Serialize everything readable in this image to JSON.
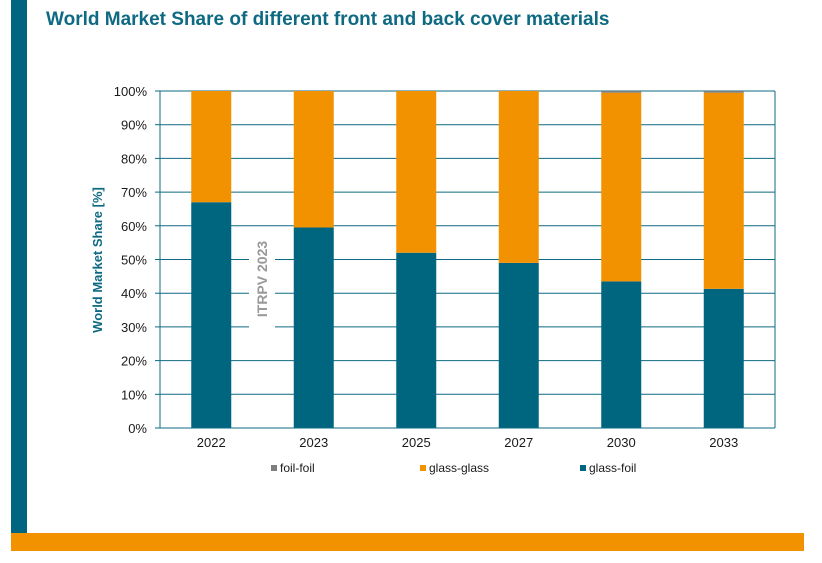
{
  "title": "World Market Share of different front and back cover materials",
  "colors": {
    "teal": "#006680",
    "orange": "#F39200",
    "grey": "#7F7F7F",
    "title": "#0E6A82",
    "grid": "#0E6A82",
    "watermark": "#999999"
  },
  "watermark": "ITRPV 2023",
  "chart_data": {
    "type": "bar",
    "stacked": true,
    "title": "",
    "xlabel": "",
    "ylabel": "World Market Share [%]",
    "categories": [
      "2022",
      "2023",
      "2025",
      "2027",
      "2030",
      "2033"
    ],
    "series": [
      {
        "name": "glass-foil",
        "color": "#006680",
        "values": [
          67,
          59.5,
          52,
          49,
          43.5,
          41.3
        ]
      },
      {
        "name": "glass-glass",
        "color": "#F39200",
        "values": [
          33,
          40.5,
          48,
          51,
          56,
          58.2
        ]
      },
      {
        "name": "foil-foil",
        "color": "#7F7F7F",
        "values": [
          0,
          0,
          0,
          0,
          0.5,
          0.5
        ]
      }
    ],
    "legend_order": [
      "foil-foil",
      "glass-glass",
      "glass-foil"
    ],
    "ylim": [
      0,
      100
    ],
    "yticks": [
      "0%",
      "10%",
      "20%",
      "30%",
      "40%",
      "50%",
      "60%",
      "70%",
      "80%",
      "90%",
      "100%"
    ],
    "grid": true,
    "legend_position": "bottom"
  }
}
